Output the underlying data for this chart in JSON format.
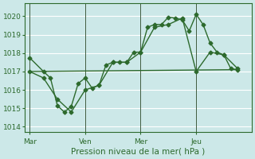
{
  "background_color": "#cce8e8",
  "grid_color": "#ffffff",
  "line_color": "#2d6a2d",
  "title": "Pression niveau de la mer( hPa )",
  "yticks": [
    1014,
    1015,
    1016,
    1017,
    1018,
    1019,
    1020
  ],
  "ylim": [
    1013.7,
    1020.7
  ],
  "xtick_labels": [
    "Mar",
    "Ven",
    "Mer",
    "Jeu"
  ],
  "xtick_positions": [
    0,
    24,
    48,
    72
  ],
  "xlim": [
    -2,
    96
  ],
  "vline_positions": [
    0,
    24,
    48,
    72
  ],
  "series1_x": [
    0,
    6,
    9,
    12,
    15,
    18,
    21,
    24,
    27,
    30,
    33,
    36,
    39,
    42,
    45,
    48,
    51,
    54,
    57,
    60,
    63,
    66,
    69,
    72,
    75,
    78,
    81,
    84,
    87,
    90
  ],
  "series1_y": [
    1017.75,
    1017.0,
    1016.65,
    1015.15,
    1014.8,
    1015.1,
    1016.35,
    1016.65,
    1016.1,
    1016.25,
    1017.35,
    1017.5,
    1017.5,
    1017.5,
    1018.05,
    1018.05,
    1019.4,
    1019.55,
    1019.55,
    1019.95,
    1019.9,
    1019.8,
    1019.2,
    1020.1,
    1019.55,
    1018.55,
    1018.05,
    1017.9,
    1017.15,
    1017.1
  ],
  "series2_x": [
    0,
    6,
    12,
    18,
    24,
    30,
    36,
    42,
    48,
    54,
    60,
    66,
    72,
    78,
    84,
    90
  ],
  "series2_y": [
    1017.0,
    1016.65,
    1015.5,
    1014.8,
    1016.0,
    1016.25,
    1017.5,
    1017.5,
    1018.05,
    1019.4,
    1019.55,
    1019.9,
    1017.0,
    1018.05,
    1017.9,
    1017.15
  ],
  "series3_x": [
    0,
    90
  ],
  "series3_y": [
    1017.0,
    1017.1
  ],
  "marker_size": 2.5,
  "line_width": 1.0,
  "tick_fontsize": 6.5,
  "xlabel_fontsize": 7.5
}
